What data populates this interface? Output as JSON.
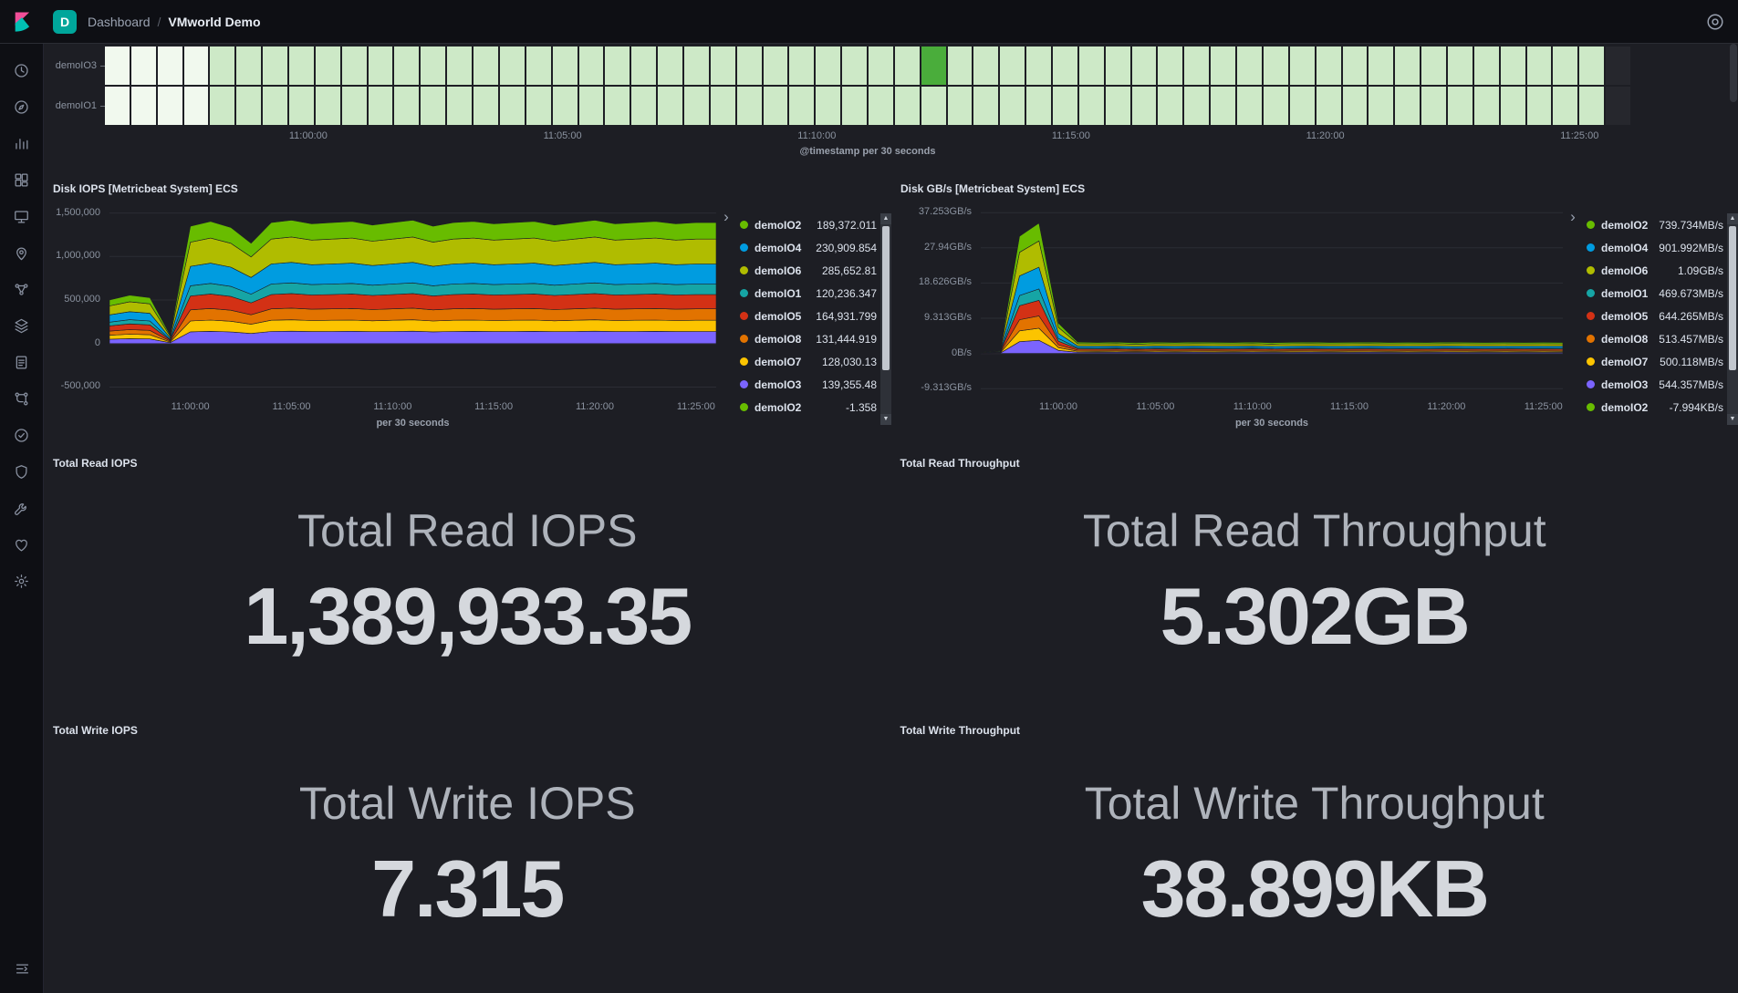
{
  "topbar": {
    "space_initial": "D",
    "breadcrumb_section": "Dashboard",
    "breadcrumb_separator": "/",
    "breadcrumb_page": "VMworld Demo"
  },
  "icons": {
    "legend_chevron": "›",
    "scroll_up": "▲",
    "scroll_down": "▼"
  },
  "colors": {
    "background": "#1d1e24",
    "chrome": "#0e0f14",
    "logo_pink": "#F04E98",
    "logo_teal": "#00BFB3",
    "space_badge": "#00A69B",
    "gridline": "#2b2d34"
  },
  "sidebar": {
    "items": [
      "recently-viewed",
      "discover",
      "visualize",
      "dashboard",
      "canvas",
      "maps",
      "machine-learning",
      "infrastructure",
      "logs",
      "apm",
      "uptime",
      "siem",
      "dev-tools",
      "monitoring",
      "management"
    ]
  },
  "chart_data": {
    "heatmap": {
      "type": "heatmap",
      "rows": [
        "demoIO3",
        "demoIO1"
      ],
      "columns": 58,
      "pale_columns": 4,
      "highlight": {
        "row": 0,
        "col": 31
      },
      "void_last_column": true,
      "colors": {
        "cell": "#cde9c7",
        "pale": "#f1f9ee",
        "highlight": "#4aad3b",
        "void": "#26272d"
      },
      "minutes_span": 30,
      "x_ticks": [
        {
          "m": 4,
          "label": "11:00:00"
        },
        {
          "m": 9,
          "label": "11:05:00"
        },
        {
          "m": 14,
          "label": "11:10:00"
        },
        {
          "m": 19,
          "label": "11:15:00"
        },
        {
          "m": 24,
          "label": "11:20:00"
        },
        {
          "m": 29,
          "label": "11:25:00"
        }
      ],
      "x_axis_label": "@timestamp per 30 seconds"
    },
    "disk_iops": {
      "type": "area",
      "stacked": true,
      "title": "Disk IOPS [Metricbeat System] ECS",
      "x_axis_label": "per 30 seconds",
      "y_min": -600000,
      "y_max": 1580000,
      "minutes_span": 30,
      "y_ticks": [
        {
          "v": 1500000,
          "label": "1,500,000"
        },
        {
          "v": 1000000,
          "label": "1,000,000"
        },
        {
          "v": 500000,
          "label": "500,000"
        },
        {
          "v": 0,
          "label": "0"
        },
        {
          "v": -500000,
          "label": "-500,000"
        }
      ],
      "x_ticks": [
        {
          "m": 4,
          "label": "11:00:00"
        },
        {
          "m": 9,
          "label": "11:05:00"
        },
        {
          "m": 14,
          "label": "11:10:00"
        },
        {
          "m": 19,
          "label": "11:15:00"
        },
        {
          "m": 24,
          "label": "11:20:00"
        },
        {
          "m": 29,
          "label": "11:25:00"
        }
      ],
      "profile": [
        0.36,
        0.4,
        0.38,
        0.07,
        0.97,
        1.01,
        0.96,
        0.83,
        1.0,
        1.02,
        0.99,
        1.0,
        1.01,
        0.98,
        1.0,
        1.02,
        0.97,
        1.0,
        1.01,
        0.99,
        1.0,
        1.01,
        0.98,
        1.0,
        1.02,
        0.99,
        1.0,
        1.01,
        0.99,
        1.0,
        1.0
      ],
      "series": [
        {
          "name": "demoIO3",
          "color": "#7B64FF",
          "base": 139355.48
        },
        {
          "name": "demoIO7",
          "color": "#FCC400",
          "base": 128030.13
        },
        {
          "name": "demoIO8",
          "color": "#E27300",
          "base": 131444.919
        },
        {
          "name": "demoIO5",
          "color": "#D33115",
          "base": 164931.799
        },
        {
          "name": "demoIO1",
          "color": "#16A5A5",
          "base": 120236.347
        },
        {
          "name": "demoIO4",
          "color": "#009CE0",
          "base": 230909.854
        },
        {
          "name": "demoIO6",
          "color": "#B0BC00",
          "base": 285652.81
        },
        {
          "name": "demoIO2",
          "color": "#68BC00",
          "base": 189372.011
        }
      ],
      "legend": [
        {
          "name": "demoIO2",
          "color": "#68BC00",
          "value": "189,372.011"
        },
        {
          "name": "demoIO4",
          "color": "#009CE0",
          "value": "230,909.854"
        },
        {
          "name": "demoIO6",
          "color": "#B0BC00",
          "value": "285,652.81"
        },
        {
          "name": "demoIO1",
          "color": "#16A5A5",
          "value": "120,236.347"
        },
        {
          "name": "demoIO5",
          "color": "#D33115",
          "value": "164,931.799"
        },
        {
          "name": "demoIO8",
          "color": "#E27300",
          "value": "131,444.919"
        },
        {
          "name": "demoIO7",
          "color": "#FCC400",
          "value": "128,030.13"
        },
        {
          "name": "demoIO3",
          "color": "#7B64FF",
          "value": "139,355.48"
        },
        {
          "name": "demoIO2",
          "color": "#68BC00",
          "value": "-1.358"
        }
      ]
    },
    "disk_gbps": {
      "type": "area",
      "stacked": true,
      "title": "Disk GB/s [Metricbeat System] ECS",
      "x_axis_label": "per 30 seconds",
      "units": "GB/s",
      "y_min": -11.2,
      "y_max": 39,
      "minutes_span": 30,
      "y_ticks": [
        {
          "v": 37.253,
          "label": "37.253GB/s"
        },
        {
          "v": 27.94,
          "label": "27.94GB/s"
        },
        {
          "v": 18.626,
          "label": "18.626GB/s"
        },
        {
          "v": 9.313,
          "label": "9.313GB/s"
        },
        {
          "v": 0,
          "label": "0B/s"
        },
        {
          "v": -9.313,
          "label": "-9.313GB/s"
        }
      ],
      "x_ticks": [
        {
          "m": 4,
          "label": "11:00:00"
        },
        {
          "m": 9,
          "label": "11:05:00"
        },
        {
          "m": 14,
          "label": "11:10:00"
        },
        {
          "m": 19,
          "label": "11:15:00"
        },
        {
          "m": 24,
          "label": "11:20:00"
        },
        {
          "m": 29,
          "label": "11:25:00"
        }
      ],
      "total_profile": [
        0.3,
        0.8,
        31.0,
        34.5,
        8.0,
        3.0,
        2.9,
        3.0,
        2.8,
        3.0,
        2.9,
        3.0,
        2.95,
        2.9,
        3.0,
        2.85,
        2.95,
        3.0,
        2.9,
        2.95,
        3.0,
        2.9,
        2.95,
        2.9,
        3.0,
        2.95,
        2.9,
        2.95,
        2.9,
        2.95,
        2.9
      ],
      "series": [
        {
          "name": "demoIO3",
          "color": "#7B64FF",
          "base": 544.357
        },
        {
          "name": "demoIO7",
          "color": "#FCC400",
          "base": 500.118
        },
        {
          "name": "demoIO8",
          "color": "#E27300",
          "base": 513.457
        },
        {
          "name": "demoIO5",
          "color": "#D33115",
          "base": 644.265
        },
        {
          "name": "demoIO1",
          "color": "#16A5A5",
          "base": 469.673
        },
        {
          "name": "demoIO4",
          "color": "#009CE0",
          "base": 901.992
        },
        {
          "name": "demoIO6",
          "color": "#B0BC00",
          "base": 1090.0
        },
        {
          "name": "demoIO2",
          "color": "#68BC00",
          "base": 739.734
        }
      ],
      "legend": [
        {
          "name": "demoIO2",
          "color": "#68BC00",
          "value": "739.734MB/s"
        },
        {
          "name": "demoIO4",
          "color": "#009CE0",
          "value": "901.992MB/s"
        },
        {
          "name": "demoIO6",
          "color": "#B0BC00",
          "value": "1.09GB/s"
        },
        {
          "name": "demoIO1",
          "color": "#16A5A5",
          "value": "469.673MB/s"
        },
        {
          "name": "demoIO5",
          "color": "#D33115",
          "value": "644.265MB/s"
        },
        {
          "name": "demoIO8",
          "color": "#E27300",
          "value": "513.457MB/s"
        },
        {
          "name": "demoIO7",
          "color": "#FCC400",
          "value": "500.118MB/s"
        },
        {
          "name": "demoIO3",
          "color": "#7B64FF",
          "value": "544.357MB/s"
        },
        {
          "name": "demoIO2",
          "color": "#68BC00",
          "value": "-7.994KB/s"
        }
      ]
    }
  },
  "metrics": [
    {
      "panel_title": "Total Read IOPS",
      "label": "Total Read IOPS",
      "value": "1,389,933.35"
    },
    {
      "panel_title": "Total Read Throughput",
      "label": "Total Read Throughput",
      "value": "5.302GB"
    },
    {
      "panel_title": "Total Write IOPS",
      "label": "Total Write IOPS",
      "value": "7.315"
    },
    {
      "panel_title": "Total Write Throughput",
      "label": "Total Write Throughput",
      "value": "38.899KB"
    }
  ]
}
